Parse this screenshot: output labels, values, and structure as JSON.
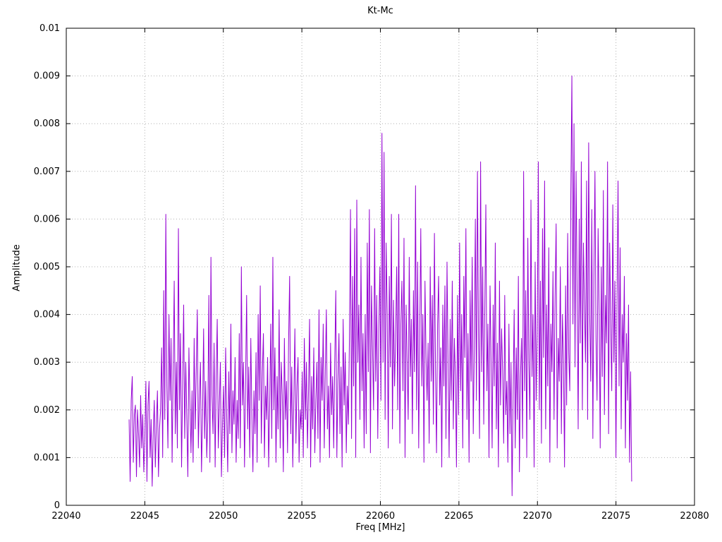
{
  "figure": {
    "background": "#ffffff",
    "border_color": "#000000",
    "grid_color": "#b0b0b0",
    "text_color": "#000000"
  },
  "chart_data": {
    "type": "line",
    "title": "Kt-Mc",
    "xlabel": "Freq [MHz]",
    "ylabel": "Amplitude",
    "xlim": [
      22040,
      22080
    ],
    "ylim": [
      0,
      0.01
    ],
    "grid": true,
    "legend": "none",
    "xticks": [
      22040,
      22045,
      22050,
      22055,
      22060,
      22065,
      22070,
      22075,
      22080
    ],
    "xtick_labels": [
      "22040",
      "22045",
      "22050",
      "22055",
      "22060",
      "22065",
      "22070",
      "22075",
      "22080"
    ],
    "yticks": [
      0,
      0.001,
      0.002,
      0.003,
      0.004,
      0.005,
      0.006,
      0.007,
      0.008,
      0.009,
      0.01
    ],
    "ytick_labels": [
      "0",
      "0.001",
      "0.002",
      "0.003",
      "0.004",
      "0.005",
      "0.006",
      "0.007",
      "0.008",
      "0.009",
      "0.01"
    ],
    "line_color": "#9400D3",
    "series": [
      {
        "name": "Kt-Mc",
        "x_start": 22044,
        "x_end": 22076,
        "y_scale": 0.0001,
        "values_e4": [
          18,
          5,
          22,
          27,
          9,
          19,
          21,
          6,
          20,
          15,
          8,
          23,
          12,
          19,
          7,
          14,
          26,
          5,
          21,
          26,
          10,
          18,
          4,
          15,
          22,
          8,
          17,
          24,
          6,
          16,
          20,
          33,
          10,
          45,
          18,
          61,
          25,
          12,
          40,
          22,
          35,
          9,
          28,
          47,
          15,
          30,
          12,
          58,
          20,
          36,
          8,
          25,
          42,
          14,
          30,
          18,
          6,
          33,
          21,
          11,
          24,
          9,
          35,
          16,
          28,
          41,
          12,
          22,
          30,
          7,
          19,
          37,
          14,
          26,
          10,
          18,
          44,
          9,
          52,
          23,
          15,
          34,
          8,
          27,
          39,
          12,
          21,
          30,
          6,
          17,
          25,
          10,
          33,
          19,
          7,
          28,
          15,
          38,
          11,
          24,
          17,
          31,
          9,
          22,
          14,
          36,
          12,
          50,
          21,
          30,
          8,
          26,
          44,
          16,
          29,
          10,
          35,
          19,
          7,
          24,
          15,
          32,
          9,
          40,
          22,
          46,
          13,
          28,
          36,
          10,
          25,
          18,
          31,
          8,
          21,
          38,
          14,
          52,
          20,
          33,
          9,
          27,
          16,
          41,
          12,
          30,
          23,
          7,
          35,
          18,
          26,
          11,
          34,
          48,
          15,
          29,
          8,
          22,
          37,
          13,
          25,
          31,
          9,
          20,
          16,
          28,
          10,
          35,
          18,
          30,
          12,
          24,
          39,
          8,
          27,
          16,
          33,
          11,
          22,
          30,
          14,
          41,
          9,
          31,
          22,
          38,
          12,
          28,
          41,
          16,
          25,
          10,
          34,
          19,
          27,
          12,
          30,
          45,
          10,
          26,
          36,
          15,
          29,
          8,
          39,
          21,
          32,
          11,
          25,
          17,
          35,
          62,
          14,
          48,
          25,
          58,
          10,
          64,
          30,
          42,
          18,
          52,
          24,
          36,
          12,
          40,
          15,
          55,
          28,
          62,
          11,
          46,
          33,
          20,
          58,
          26,
          44,
          14,
          37,
          50,
          22,
          78,
          30,
          74,
          18,
          55,
          40,
          12,
          48,
          29,
          61,
          16,
          43,
          25,
          35,
          50,
          20,
          61,
          13,
          38,
          47,
          24,
          56,
          10,
          42,
          30,
          18,
          52,
          27,
          39,
          15,
          45,
          28,
          67,
          20,
          51,
          12,
          36,
          58,
          25,
          40,
          9,
          47,
          31,
          22,
          34,
          13,
          50,
          26,
          44,
          17,
          57,
          29,
          11,
          38,
          48,
          21,
          33,
          8,
          42,
          25,
          46,
          14,
          51,
          30,
          10,
          39,
          22,
          47,
          16,
          35,
          27,
          8,
          44,
          19,
          55,
          24,
          40,
          12,
          48,
          31,
          58,
          18,
          36,
          9,
          45,
          26,
          52,
          15,
          33,
          60,
          22,
          70,
          35,
          14,
          72,
          28,
          50,
          17,
          41,
          63,
          24,
          38,
          10,
          46,
          30,
          12,
          42,
          25,
          55,
          16,
          34,
          8,
          47,
          21,
          37,
          28,
          13,
          44,
          19,
          26,
          9,
          38,
          15,
          30,
          2,
          23,
          41,
          12,
          33,
          18,
          48,
          7,
          27,
          35,
          14,
          70,
          24,
          45,
          10,
          56,
          30,
          18,
          64,
          27,
          40,
          8,
          51,
          22,
          36,
          72,
          20,
          47,
          13,
          58,
          31,
          68,
          16,
          42,
          25,
          54,
          9,
          38,
          28,
          49,
          18,
          44,
          59,
          12,
          35,
          26,
          50,
          15,
          40,
          30,
          8,
          46,
          21,
          57,
          32,
          24,
          65,
          90,
          38,
          80,
          29,
          70,
          45,
          16,
          60,
          34,
          72,
          20,
          55,
          42,
          30,
          68,
          18,
          76,
          40,
          26,
          62,
          14,
          48,
          70,
          35,
          22,
          58,
          41,
          12,
          50,
          27,
          66,
          19,
          44,
          34,
          72,
          15,
          55,
          38,
          24,
          63,
          30,
          47,
          10,
          42,
          68,
          25,
          54,
          16,
          40,
          30,
          48,
          12,
          36,
          22,
          42,
          9,
          28,
          5
        ]
      }
    ]
  }
}
